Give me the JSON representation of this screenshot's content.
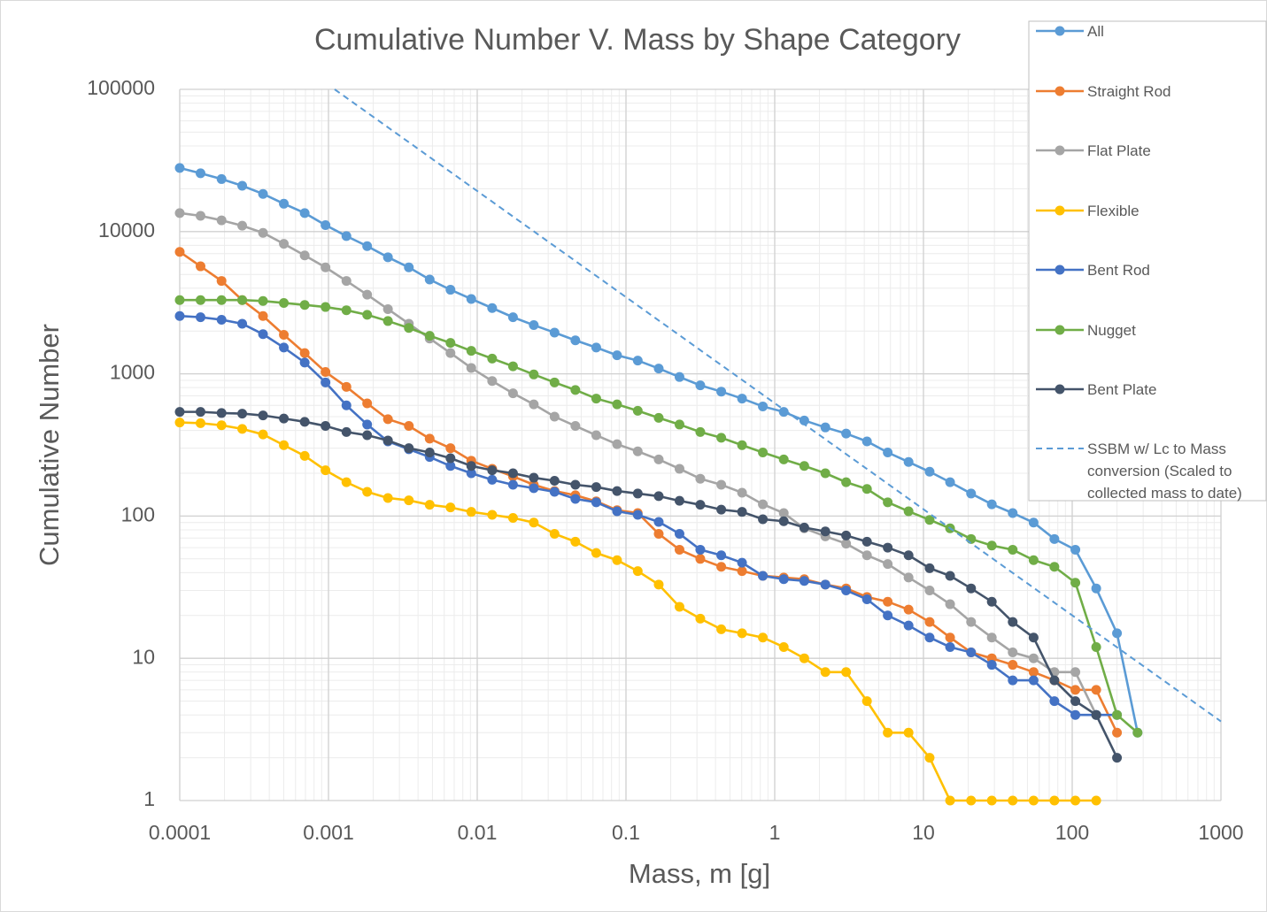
{
  "chart_data": {
    "type": "line",
    "title": "Cumulative Number V. Mass by Shape Category",
    "x_label": "Mass, m [g]",
    "y_label": "Cumulative Number",
    "x_scale": "log",
    "y_scale": "log",
    "xlim": [
      0.0001,
      1000
    ],
    "ylim": [
      1,
      100000
    ],
    "xticks": [
      0.0001,
      0.001,
      0.01,
      0.1,
      1,
      10,
      100,
      1000
    ],
    "yticks": [
      1,
      10,
      100,
      1000,
      10000,
      100000
    ],
    "grid": true,
    "minor_grid": true,
    "legend": "upper right",
    "x": [
      0.0001,
      0.000138,
      0.000191,
      0.000263,
      0.000363,
      0.000501,
      0.000692,
      0.000955,
      0.00132,
      0.00182,
      0.00251,
      0.00347,
      0.00479,
      0.00661,
      0.00912,
      0.0126,
      0.0174,
      0.024,
      0.0331,
      0.0457,
      0.0631,
      0.0871,
      0.12,
      0.166,
      0.229,
      0.316,
      0.437,
      0.603,
      0.832,
      1.15,
      1.58,
      2.19,
      3.02,
      4.17,
      5.75,
      7.94,
      11,
      15.1,
      20.9,
      28.8,
      39.8,
      55,
      75.9,
      105,
      145,
      200,
      275
    ],
    "series": [
      {
        "name": "All",
        "color": "#5b9bd5",
        "marker": "circle",
        "values": [
          28000,
          25700,
          23400,
          21000,
          18400,
          15700,
          13500,
          11100,
          9300,
          7900,
          6600,
          5600,
          4600,
          3900,
          3360,
          2900,
          2500,
          2200,
          1950,
          1720,
          1530,
          1350,
          1240,
          1090,
          950,
          830,
          750,
          670,
          590,
          540,
          470,
          420,
          380,
          335,
          280,
          240,
          205,
          173,
          144,
          121,
          105,
          90,
          69,
          58,
          31,
          15,
          3
        ]
      },
      {
        "name": "Straight Rod",
        "color": "#ed7d31",
        "marker": "circle",
        "values": [
          7200,
          5700,
          4500,
          3300,
          2550,
          1880,
          1400,
          1030,
          810,
          620,
          480,
          430,
          350,
          300,
          245,
          215,
          190,
          166,
          150,
          140,
          127,
          110,
          105,
          75,
          58,
          50,
          44,
          41,
          38,
          37,
          36,
          33,
          31,
          27,
          25,
          22,
          18,
          14,
          11,
          10,
          9,
          8,
          7,
          6,
          6,
          3,
          null
        ]
      },
      {
        "name": "Flat Plate",
        "color": "#a5a5a5",
        "marker": "circle",
        "values": [
          13500,
          12900,
          12000,
          11000,
          9800,
          8200,
          6800,
          5600,
          4500,
          3600,
          2850,
          2250,
          1770,
          1400,
          1100,
          890,
          730,
          610,
          500,
          430,
          370,
          320,
          285,
          250,
          215,
          183,
          166,
          146,
          121,
          105,
          82,
          72,
          64,
          53,
          46,
          37,
          30,
          24,
          18,
          14,
          11,
          10,
          8,
          8,
          4,
          null,
          null
        ]
      },
      {
        "name": "Flexible",
        "color": "#ffc000",
        "marker": "circle",
        "values": [
          455,
          450,
          435,
          410,
          375,
          315,
          265,
          210,
          173,
          148,
          134,
          129,
          120,
          115,
          107,
          102,
          97,
          90,
          75,
          66,
          55,
          49,
          41,
          33,
          23,
          19,
          16,
          15,
          14,
          12,
          10,
          8,
          8,
          5,
          3,
          3,
          2,
          1,
          1,
          1,
          1,
          1,
          1,
          1,
          1,
          null,
          null
        ]
      },
      {
        "name": "Bent Rod",
        "color": "#4472c4",
        "marker": "circle",
        "values": [
          2550,
          2500,
          2400,
          2250,
          1900,
          1530,
          1200,
          870,
          600,
          440,
          335,
          295,
          260,
          225,
          200,
          180,
          166,
          157,
          148,
          132,
          125,
          108,
          102,
          91,
          75,
          58,
          53,
          47,
          38,
          36,
          35,
          33,
          30,
          26,
          20,
          17,
          14,
          12,
          11,
          9,
          7,
          7,
          5,
          4,
          4,
          4,
          null
        ]
      },
      {
        "name": "Nugget",
        "color": "#70ad47",
        "marker": "circle",
        "values": [
          3300,
          3300,
          3300,
          3300,
          3250,
          3150,
          3050,
          2950,
          2800,
          2600,
          2350,
          2100,
          1850,
          1650,
          1450,
          1280,
          1130,
          990,
          870,
          770,
          670,
          610,
          550,
          490,
          440,
          390,
          355,
          315,
          280,
          250,
          225,
          200,
          173,
          155,
          125,
          108,
          94,
          82,
          69,
          62,
          58,
          49,
          44,
          34,
          12,
          4,
          3
        ]
      },
      {
        "name": "Bent Plate",
        "color": "#44546a",
        "marker": "circle",
        "values": [
          540,
          540,
          530,
          525,
          510,
          485,
          460,
          430,
          390,
          370,
          340,
          300,
          280,
          255,
          225,
          210,
          200,
          186,
          177,
          166,
          160,
          150,
          144,
          138,
          128,
          120,
          111,
          107,
          95,
          92,
          83,
          78,
          73,
          66,
          60,
          53,
          43,
          38,
          31,
          25,
          18,
          14,
          7,
          5,
          4,
          2,
          null
        ]
      },
      {
        "name": "SSBM w/ Lc to Mass conversion (Scaled to collected mass to date)",
        "color": "#5b9bd5",
        "line_style": "dashed",
        "x": [
          0.0011,
          1000
        ],
        "values": [
          100000,
          3.6
        ]
      }
    ]
  }
}
